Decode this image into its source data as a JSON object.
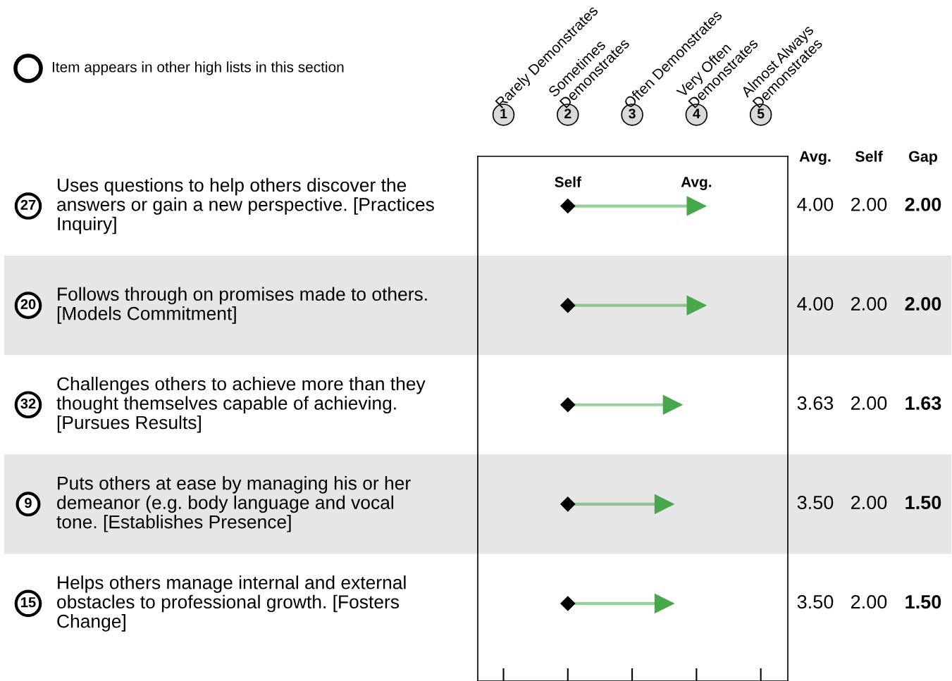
{
  "chart_data": {
    "type": "scatter",
    "orientation": "horizontal",
    "categories": [
      "Uses questions to help others discover the\nanswers or gain a new perspective. [Practices\nInquiry]",
      "Follows through on promises made to others.\n[Models Commitment]",
      "Challenges others to achieve more than they\nthought themselves capable of achieving.\n[Pursues Results]",
      "Puts others at ease by managing his or her\ndemeanor (e.g. body language and vocal\ntone. [Establishes Presence]",
      "Helps others manage internal and external\nobstacles to professional growth. [Fosters\nChange]"
    ],
    "y2_categories": [
      "27",
      "20",
      "32",
      "9",
      "15"
    ],
    "series": [
      {
        "name": "Avg.",
        "color": "#46a84a",
        "marker": "triangle",
        "values": [
          4.0,
          4.0,
          3.63,
          3.5,
          3.5
        ],
        "value_labels": [
          "4.00",
          "4.00",
          "3.63",
          "3.50",
          "3.50"
        ]
      },
      {
        "name": "Self",
        "color": "#000000",
        "marker": "diamond",
        "values": [
          2.0,
          2.0,
          2.0,
          2.0,
          2.0
        ],
        "value_labels": [
          "2.00",
          "2.00",
          "2.00",
          "2.00",
          "2.00"
        ]
      }
    ],
    "xlim": [
      0.6,
      5.42
    ],
    "xticks": [
      1,
      2,
      3,
      4,
      5
    ],
    "annotations": [
      "Item appears in other high lists in this section",
      "Rarely Demonstrates",
      "Sometimes\nDemonstrates",
      "Often Demonstrates",
      "Very Often\nDemonstrates",
      "Almost Always\nDemonstrates",
      "Gap",
      "2.00",
      "2.00",
      "1.63",
      "1.50",
      "1.50"
    ],
    "grid": false
  }
}
